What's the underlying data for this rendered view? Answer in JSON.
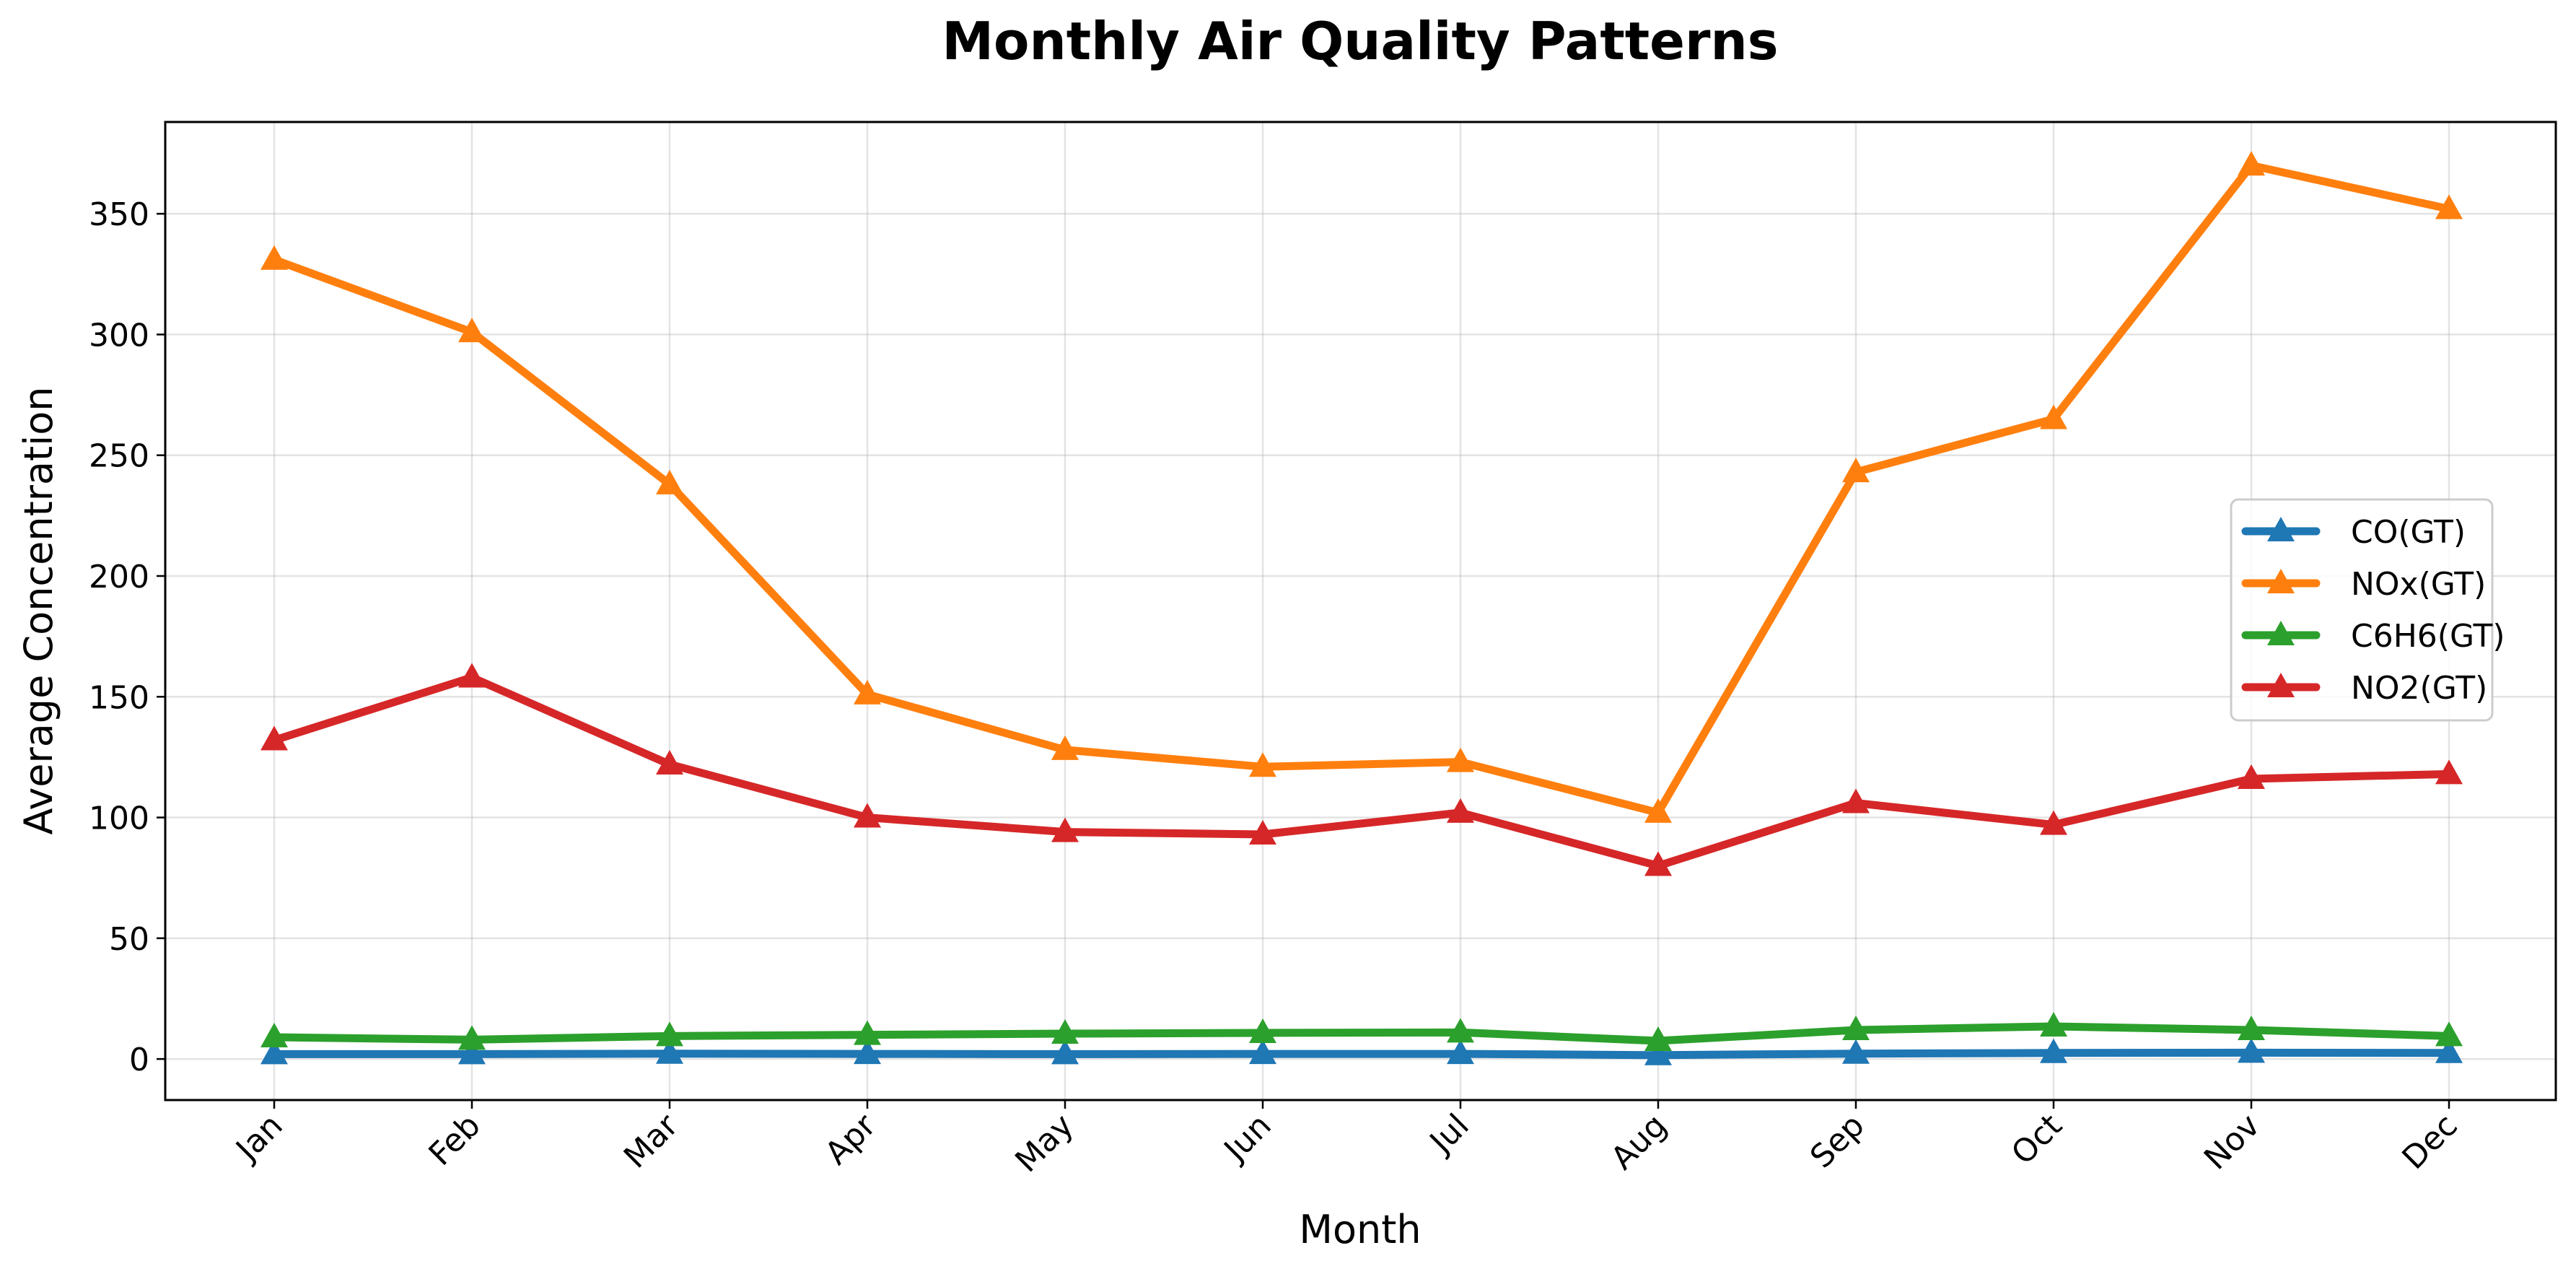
{
  "chart_data": {
    "type": "line",
    "title": "Monthly Air Quality Patterns",
    "xlabel": "Month",
    "ylabel": "Average Concentration",
    "categories": [
      "Jan",
      "Feb",
      "Mar",
      "Apr",
      "May",
      "Jun",
      "Jul",
      "Aug",
      "Sep",
      "Oct",
      "Nov",
      "Dec"
    ],
    "ylim": [
      -17,
      388
    ],
    "yticks": [
      0,
      50,
      100,
      150,
      200,
      250,
      300,
      350
    ],
    "grid": true,
    "legend_position": "center-right",
    "marker": "triangle",
    "series": [
      {
        "name": "CO(GT)",
        "color": "#1f77b4",
        "values": [
          2.0,
          2.0,
          2.2,
          2.1,
          2.0,
          2.1,
          2.1,
          1.6,
          2.2,
          2.5,
          2.6,
          2.5
        ]
      },
      {
        "name": "NOx(GT)",
        "color": "#ff7f0e",
        "values": [
          331,
          301,
          238,
          151,
          128,
          121,
          123,
          102,
          243,
          265,
          370,
          352
        ]
      },
      {
        "name": "C6H6(GT)",
        "color": "#2ca02c",
        "values": [
          9,
          8,
          9.5,
          10,
          10.5,
          10.8,
          11,
          7.5,
          12,
          13.5,
          12,
          9.5
        ]
      },
      {
        "name": "NO2(GT)",
        "color": "#d62728",
        "values": [
          132,
          158,
          122,
          100,
          94,
          93,
          102,
          80,
          106,
          97,
          116,
          118
        ]
      }
    ]
  }
}
